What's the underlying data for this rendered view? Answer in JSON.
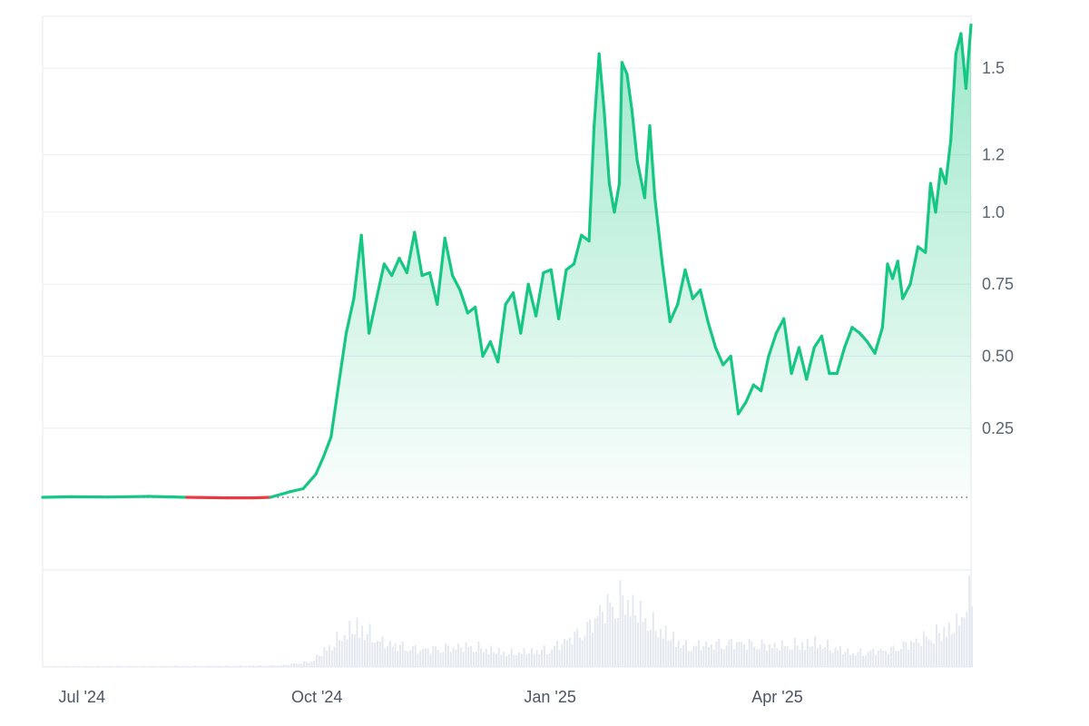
{
  "chart_data": {
    "type": "area",
    "title": "",
    "xlabel": "",
    "ylabel": "",
    "y_ticks": [
      "0.25",
      "0.50",
      "0.75",
      "1.0",
      "1.2",
      "1.5"
    ],
    "x_ticks": [
      "Jul '24",
      "Oct '24",
      "Jan '25",
      "Apr '25"
    ],
    "ylim": [
      0,
      1.65
    ],
    "baseline_value": 0.01,
    "grid": true,
    "colors": {
      "line_up": "#16c784",
      "line_down": "#ea3943",
      "fill": "#16c784",
      "volume": "#e3e7ef"
    },
    "price_series": [
      [
        "2024-06-24",
        0.01
      ],
      [
        "2024-07-05",
        0.012
      ],
      [
        "2024-07-20",
        0.011
      ],
      [
        "2024-08-05",
        0.013
      ],
      [
        "2024-08-20",
        0.01
      ],
      [
        "2024-09-05",
        0.008
      ],
      [
        "2024-09-15",
        0.008
      ],
      [
        "2024-09-22",
        0.01
      ],
      [
        "2024-09-30",
        0.03
      ],
      [
        "2024-10-05",
        0.04
      ],
      [
        "2024-10-10",
        0.09
      ],
      [
        "2024-10-13",
        0.15
      ],
      [
        "2024-10-16",
        0.22
      ],
      [
        "2024-10-19",
        0.4
      ],
      [
        "2024-10-22",
        0.58
      ],
      [
        "2024-10-25",
        0.7
      ],
      [
        "2024-10-28",
        0.92
      ],
      [
        "2024-10-31",
        0.58
      ],
      [
        "2024-11-03",
        0.7
      ],
      [
        "2024-11-06",
        0.82
      ],
      [
        "2024-11-09",
        0.78
      ],
      [
        "2024-11-12",
        0.84
      ],
      [
        "2024-11-15",
        0.79
      ],
      [
        "2024-11-18",
        0.93
      ],
      [
        "2024-11-21",
        0.78
      ],
      [
        "2024-11-24",
        0.79
      ],
      [
        "2024-11-27",
        0.68
      ],
      [
        "2024-11-30",
        0.91
      ],
      [
        "2024-12-03",
        0.78
      ],
      [
        "2024-12-06",
        0.73
      ],
      [
        "2024-12-09",
        0.65
      ],
      [
        "2024-12-12",
        0.67
      ],
      [
        "2024-12-15",
        0.5
      ],
      [
        "2024-12-18",
        0.55
      ],
      [
        "2024-12-21",
        0.48
      ],
      [
        "2024-12-24",
        0.68
      ],
      [
        "2024-12-27",
        0.72
      ],
      [
        "2024-12-30",
        0.58
      ],
      [
        "2025-01-02",
        0.75
      ],
      [
        "2025-01-05",
        0.64
      ],
      [
        "2025-01-08",
        0.79
      ],
      [
        "2025-01-11",
        0.8
      ],
      [
        "2025-01-14",
        0.63
      ],
      [
        "2025-01-17",
        0.8
      ],
      [
        "2025-01-20",
        0.82
      ],
      [
        "2025-01-23",
        0.92
      ],
      [
        "2025-01-26",
        0.9
      ],
      [
        "2025-01-28",
        1.3
      ],
      [
        "2025-01-30",
        1.55
      ],
      [
        "2025-02-01",
        1.35
      ],
      [
        "2025-02-03",
        1.1
      ],
      [
        "2025-02-05",
        1.0
      ],
      [
        "2025-02-07",
        1.1
      ],
      [
        "2025-02-08",
        1.52
      ],
      [
        "2025-02-10",
        1.48
      ],
      [
        "2025-02-12",
        1.35
      ],
      [
        "2025-02-14",
        1.18
      ],
      [
        "2025-02-17",
        1.05
      ],
      [
        "2025-02-19",
        1.3
      ],
      [
        "2025-02-21",
        1.05
      ],
      [
        "2025-02-24",
        0.82
      ],
      [
        "2025-02-27",
        0.62
      ],
      [
        "2025-03-02",
        0.68
      ],
      [
        "2025-03-05",
        0.8
      ],
      [
        "2025-03-08",
        0.7
      ],
      [
        "2025-03-11",
        0.73
      ],
      [
        "2025-03-14",
        0.62
      ],
      [
        "2025-03-17",
        0.53
      ],
      [
        "2025-03-20",
        0.47
      ],
      [
        "2025-03-23",
        0.5
      ],
      [
        "2025-03-26",
        0.3
      ],
      [
        "2025-03-29",
        0.34
      ],
      [
        "2025-04-01",
        0.4
      ],
      [
        "2025-04-04",
        0.38
      ],
      [
        "2025-04-07",
        0.5
      ],
      [
        "2025-04-10",
        0.58
      ],
      [
        "2025-04-13",
        0.63
      ],
      [
        "2025-04-16",
        0.44
      ],
      [
        "2025-04-19",
        0.53
      ],
      [
        "2025-04-22",
        0.42
      ],
      [
        "2025-04-25",
        0.53
      ],
      [
        "2025-04-28",
        0.57
      ],
      [
        "2025-05-01",
        0.44
      ],
      [
        "2025-05-04",
        0.44
      ],
      [
        "2025-05-07",
        0.53
      ],
      [
        "2025-05-10",
        0.6
      ],
      [
        "2025-05-13",
        0.58
      ],
      [
        "2025-05-16",
        0.55
      ],
      [
        "2025-05-19",
        0.51
      ],
      [
        "2025-05-22",
        0.6
      ],
      [
        "2025-05-24",
        0.82
      ],
      [
        "2025-05-26",
        0.77
      ],
      [
        "2025-05-28",
        0.83
      ],
      [
        "2025-05-30",
        0.7
      ],
      [
        "2025-06-02",
        0.75
      ],
      [
        "2025-06-05",
        0.88
      ],
      [
        "2025-06-08",
        0.86
      ],
      [
        "2025-06-10",
        1.1
      ],
      [
        "2025-06-12",
        1.0
      ],
      [
        "2025-06-14",
        1.15
      ],
      [
        "2025-06-16",
        1.1
      ],
      [
        "2025-06-18",
        1.25
      ],
      [
        "2025-06-20",
        1.55
      ],
      [
        "2025-06-22",
        1.62
      ],
      [
        "2025-06-24",
        1.43
      ],
      [
        "2025-06-26",
        1.65
      ]
    ],
    "volume_series": [
      [
        "2024-06-24",
        0.01
      ],
      [
        "2024-09-25",
        0.02
      ],
      [
        "2024-10-08",
        0.08
      ],
      [
        "2024-10-20",
        0.45
      ],
      [
        "2024-10-26",
        0.6
      ],
      [
        "2024-11-05",
        0.35
      ],
      [
        "2024-11-20",
        0.25
      ],
      [
        "2024-12-10",
        0.3
      ],
      [
        "2024-12-25",
        0.2
      ],
      [
        "2025-01-10",
        0.25
      ],
      [
        "2025-01-25",
        0.55
      ],
      [
        "2025-01-30",
        0.8
      ],
      [
        "2025-02-08",
        1.0
      ],
      [
        "2025-02-20",
        0.6
      ],
      [
        "2025-03-05",
        0.3
      ],
      [
        "2025-03-25",
        0.35
      ],
      [
        "2025-04-10",
        0.3
      ],
      [
        "2025-04-25",
        0.35
      ],
      [
        "2025-05-10",
        0.2
      ],
      [
        "2025-05-25",
        0.25
      ],
      [
        "2025-06-10",
        0.45
      ],
      [
        "2025-06-20",
        0.6
      ],
      [
        "2025-06-25",
        1.0
      ]
    ]
  }
}
